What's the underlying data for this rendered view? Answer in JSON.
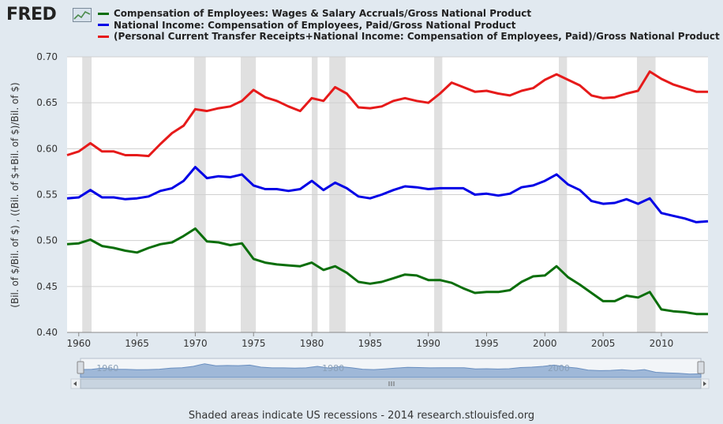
{
  "brand": {
    "name": "FRED"
  },
  "colors": {
    "background": "#e1e9f0",
    "plot_background": "#ffffff",
    "recession_band": "#e0e0e0",
    "series": [
      "#0a6e0a",
      "#0000e6",
      "#e61a1a"
    ],
    "navigator_fill": "#9fb8d8",
    "navigator_handle": "#d8dde3"
  },
  "legend": [
    {
      "label": "Compensation of Employees: Wages & Salary Accruals/Gross National Product",
      "color": "#0a6e0a"
    },
    {
      "label": "National Income: Compensation of Employees, Paid/Gross National Product",
      "color": "#0000e6"
    },
    {
      "label": "(Personal Current Transfer Receipts+National Income: Compensation of Employees, Paid)/Gross National Product",
      "color": "#e61a1a"
    }
  ],
  "footer": "Shaded areas indicate US recessions - 2014 research.stlouisfed.org",
  "chart_data": {
    "type": "line",
    "ylabel": "(Bil. of $/Bil. of $) , ((Bil. of $+Bil. of $)/Bil. of $)",
    "xlim": [
      1959,
      2014
    ],
    "ylim": [
      0.4,
      0.7
    ],
    "yticks": [
      0.4,
      0.45,
      0.5,
      0.55,
      0.6,
      0.65,
      0.7
    ],
    "ytick_labels": [
      "0.40",
      "0.45",
      "0.50",
      "0.55",
      "0.60",
      "0.65",
      "0.70"
    ],
    "xticks": [
      1960,
      1965,
      1970,
      1975,
      1980,
      1985,
      1990,
      1995,
      2000,
      2005,
      2010
    ],
    "xtick_labels": [
      "1960",
      "1965",
      "1970",
      "1975",
      "1980",
      "1985",
      "1990",
      "1995",
      "2000",
      "2005",
      "2010"
    ],
    "grid": true,
    "recessions": [
      [
        1960.3,
        1961.1
      ],
      [
        1969.9,
        1970.9
      ],
      [
        1973.9,
        1975.2
      ],
      [
        1980.0,
        1980.5
      ],
      [
        1981.5,
        1982.9
      ],
      [
        1990.5,
        1991.2
      ],
      [
        2001.2,
        2001.9
      ],
      [
        2007.9,
        2009.5
      ]
    ],
    "series": [
      {
        "name": "Compensation of Employees: Wages & Salary Accruals/Gross National Product",
        "color": "#0a6e0a",
        "points": [
          [
            1959,
            0.496
          ],
          [
            1960,
            0.497
          ],
          [
            1961,
            0.501
          ],
          [
            1962,
            0.494
          ],
          [
            1963,
            0.492
          ],
          [
            1964,
            0.489
          ],
          [
            1965,
            0.487
          ],
          [
            1966,
            0.492
          ],
          [
            1967,
            0.496
          ],
          [
            1968,
            0.498
          ],
          [
            1969,
            0.505
          ],
          [
            1970,
            0.513
          ],
          [
            1971,
            0.499
          ],
          [
            1972,
            0.498
          ],
          [
            1973,
            0.495
          ],
          [
            1974,
            0.497
          ],
          [
            1975,
            0.48
          ],
          [
            1976,
            0.476
          ],
          [
            1977,
            0.474
          ],
          [
            1978,
            0.473
          ],
          [
            1979,
            0.472
          ],
          [
            1980,
            0.476
          ],
          [
            1981,
            0.468
          ],
          [
            1982,
            0.472
          ],
          [
            1983,
            0.465
          ],
          [
            1984,
            0.455
          ],
          [
            1985,
            0.453
          ],
          [
            1986,
            0.455
          ],
          [
            1987,
            0.459
          ],
          [
            1988,
            0.463
          ],
          [
            1989,
            0.462
          ],
          [
            1990,
            0.457
          ],
          [
            1991,
            0.457
          ],
          [
            1992,
            0.454
          ],
          [
            1993,
            0.448
          ],
          [
            1994,
            0.443
          ],
          [
            1995,
            0.444
          ],
          [
            1996,
            0.444
          ],
          [
            1997,
            0.446
          ],
          [
            1998,
            0.455
          ],
          [
            1999,
            0.461
          ],
          [
            2000,
            0.462
          ],
          [
            2001,
            0.472
          ],
          [
            2002,
            0.46
          ],
          [
            2003,
            0.452
          ],
          [
            2004,
            0.443
          ],
          [
            2005,
            0.434
          ],
          [
            2006,
            0.434
          ],
          [
            2007,
            0.44
          ],
          [
            2008,
            0.438
          ],
          [
            2009,
            0.444
          ],
          [
            2010,
            0.425
          ],
          [
            2011,
            0.423
          ],
          [
            2012,
            0.422
          ],
          [
            2013,
            0.42
          ],
          [
            2014,
            0.42
          ]
        ]
      },
      {
        "name": "National Income: Compensation of Employees, Paid/Gross National Product",
        "color": "#0000e6",
        "points": [
          [
            1959,
            0.546
          ],
          [
            1960,
            0.547
          ],
          [
            1961,
            0.555
          ],
          [
            1962,
            0.547
          ],
          [
            1963,
            0.547
          ],
          [
            1964,
            0.545
          ],
          [
            1965,
            0.546
          ],
          [
            1966,
            0.548
          ],
          [
            1967,
            0.554
          ],
          [
            1968,
            0.557
          ],
          [
            1969,
            0.565
          ],
          [
            1970,
            0.58
          ],
          [
            1971,
            0.568
          ],
          [
            1972,
            0.57
          ],
          [
            1973,
            0.569
          ],
          [
            1974,
            0.572
          ],
          [
            1975,
            0.56
          ],
          [
            1976,
            0.556
          ],
          [
            1977,
            0.556
          ],
          [
            1978,
            0.554
          ],
          [
            1979,
            0.556
          ],
          [
            1980,
            0.565
          ],
          [
            1981,
            0.555
          ],
          [
            1982,
            0.563
          ],
          [
            1983,
            0.557
          ],
          [
            1984,
            0.548
          ],
          [
            1985,
            0.546
          ],
          [
            1986,
            0.55
          ],
          [
            1987,
            0.555
          ],
          [
            1988,
            0.559
          ],
          [
            1989,
            0.558
          ],
          [
            1990,
            0.556
          ],
          [
            1991,
            0.557
          ],
          [
            1992,
            0.557
          ],
          [
            1993,
            0.557
          ],
          [
            1994,
            0.55
          ],
          [
            1995,
            0.551
          ],
          [
            1996,
            0.549
          ],
          [
            1997,
            0.551
          ],
          [
            1998,
            0.558
          ],
          [
            1999,
            0.56
          ],
          [
            2000,
            0.565
          ],
          [
            2001,
            0.572
          ],
          [
            2002,
            0.561
          ],
          [
            2003,
            0.555
          ],
          [
            2004,
            0.543
          ],
          [
            2005,
            0.54
          ],
          [
            2006,
            0.541
          ],
          [
            2007,
            0.545
          ],
          [
            2008,
            0.54
          ],
          [
            2009,
            0.546
          ],
          [
            2010,
            0.53
          ],
          [
            2011,
            0.527
          ],
          [
            2012,
            0.524
          ],
          [
            2013,
            0.52
          ],
          [
            2014,
            0.521
          ]
        ]
      },
      {
        "name": "(Personal Current Transfer Receipts+National Income: Compensation of Employees, Paid)/Gross National Product",
        "color": "#e61a1a",
        "points": [
          [
            1959,
            0.593
          ],
          [
            1960,
            0.597
          ],
          [
            1961,
            0.606
          ],
          [
            1962,
            0.597
          ],
          [
            1963,
            0.597
          ],
          [
            1964,
            0.593
          ],
          [
            1965,
            0.593
          ],
          [
            1966,
            0.592
          ],
          [
            1967,
            0.605
          ],
          [
            1968,
            0.617
          ],
          [
            1969,
            0.625
          ],
          [
            1970,
            0.643
          ],
          [
            1971,
            0.641
          ],
          [
            1972,
            0.644
          ],
          [
            1973,
            0.646
          ],
          [
            1974,
            0.652
          ],
          [
            1975,
            0.664
          ],
          [
            1976,
            0.656
          ],
          [
            1977,
            0.652
          ],
          [
            1978,
            0.646
          ],
          [
            1979,
            0.641
          ],
          [
            1980,
            0.655
          ],
          [
            1981,
            0.652
          ],
          [
            1982,
            0.667
          ],
          [
            1983,
            0.66
          ],
          [
            1984,
            0.645
          ],
          [
            1985,
            0.644
          ],
          [
            1986,
            0.646
          ],
          [
            1987,
            0.652
          ],
          [
            1988,
            0.655
          ],
          [
            1989,
            0.652
          ],
          [
            1990,
            0.65
          ],
          [
            1991,
            0.66
          ],
          [
            1992,
            0.672
          ],
          [
            1993,
            0.667
          ],
          [
            1994,
            0.662
          ],
          [
            1995,
            0.663
          ],
          [
            1996,
            0.66
          ],
          [
            1997,
            0.658
          ],
          [
            1998,
            0.663
          ],
          [
            1999,
            0.666
          ],
          [
            2000,
            0.675
          ],
          [
            2001,
            0.681
          ],
          [
            2002,
            0.675
          ],
          [
            2003,
            0.669
          ],
          [
            2004,
            0.658
          ],
          [
            2005,
            0.655
          ],
          [
            2006,
            0.656
          ],
          [
            2007,
            0.66
          ],
          [
            2008,
            0.663
          ],
          [
            2009,
            0.684
          ],
          [
            2010,
            0.676
          ],
          [
            2011,
            0.67
          ],
          [
            2012,
            0.666
          ],
          [
            2013,
            0.662
          ],
          [
            2014,
            0.662
          ]
        ]
      }
    ],
    "navigator": {
      "xtick_labels": [
        "1960",
        "1980",
        "2000"
      ],
      "range": [
        1959,
        2014
      ]
    }
  }
}
